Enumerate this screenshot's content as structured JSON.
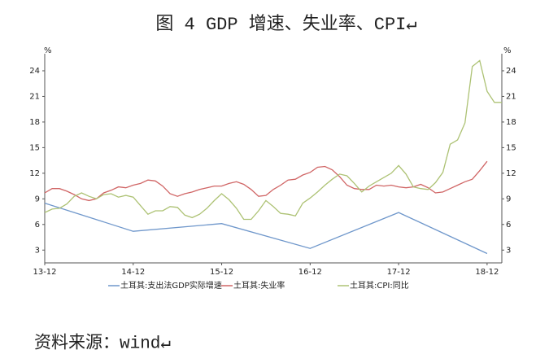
{
  "chart_data": {
    "type": "line",
    "title": "图 4 GDP 增速、失业率、CPI↵",
    "source": "资料来源：wind↵",
    "y_label": "%",
    "y2_label": "%",
    "x": [
      "13-12",
      "14-01",
      "14-02",
      "14-03",
      "14-04",
      "14-05",
      "14-06",
      "14-07",
      "14-08",
      "14-09",
      "14-10",
      "14-11",
      "14-12",
      "15-01",
      "15-02",
      "15-03",
      "15-04",
      "15-05",
      "15-06",
      "15-07",
      "15-08",
      "15-09",
      "15-10",
      "15-11",
      "15-12",
      "16-01",
      "16-02",
      "16-03",
      "16-04",
      "16-05",
      "16-06",
      "16-07",
      "16-08",
      "16-09",
      "16-10",
      "16-11",
      "16-12",
      "17-01",
      "17-02",
      "17-03",
      "17-04",
      "17-05",
      "17-06",
      "17-07",
      "17-08",
      "17-09",
      "17-10",
      "17-11",
      "17-12",
      "18-01",
      "18-02",
      "18-03",
      "18-04",
      "18-05",
      "18-06",
      "18-07",
      "18-08",
      "18-09",
      "18-10",
      "18-11",
      "18-12",
      "19-01",
      "19-02"
    ],
    "xticks": [
      "13-12",
      "14-12",
      "15-12",
      "16-12",
      "17-12",
      "18-12"
    ],
    "ylim": [
      1.5,
      26
    ],
    "yticks": [
      3,
      6,
      9,
      12,
      15,
      18,
      21,
      24
    ],
    "y2lim": [
      1.5,
      26
    ],
    "y2ticks": [
      3,
      6,
      9,
      12,
      15,
      18,
      21,
      24
    ],
    "series": [
      {
        "name": "土耳其:支出法GDP实际增速",
        "color": "#6f97cb",
        "x": [
          "13-12",
          "14-12",
          "15-12",
          "16-12",
          "17-12",
          "18-12"
        ],
        "values": [
          8.5,
          5.2,
          6.1,
          3.2,
          7.4,
          2.6
        ]
      },
      {
        "name": "土耳其:失业率",
        "color": "#d06565",
        "values": [
          9.7,
          10.2,
          10.2,
          9.9,
          9.5,
          9.0,
          8.8,
          9.0,
          9.7,
          10.0,
          10.4,
          10.3,
          10.6,
          10.8,
          11.2,
          11.1,
          10.5,
          9.6,
          9.3,
          9.6,
          9.8,
          10.1,
          10.3,
          10.5,
          10.5,
          10.8,
          11.0,
          10.7,
          10.1,
          9.3,
          9.4,
          10.1,
          10.6,
          11.2,
          11.3,
          11.8,
          12.1,
          12.7,
          12.8,
          12.4,
          11.6,
          10.6,
          10.2,
          10.1,
          10.1,
          10.6,
          10.5,
          10.6,
          10.4,
          10.3,
          10.4,
          10.7,
          10.3,
          9.7,
          9.8,
          10.2,
          10.6,
          11.0,
          11.3,
          12.3,
          13.4,
          null,
          null
        ]
      },
      {
        "name": "土耳其:CPI:同比",
        "color": "#adc274",
        "values": [
          7.4,
          7.8,
          7.9,
          8.4,
          9.3,
          9.7,
          9.3,
          9.0,
          9.5,
          9.6,
          9.2,
          9.4,
          9.2,
          8.2,
          7.2,
          7.6,
          7.6,
          8.1,
          8.0,
          7.1,
          6.8,
          7.2,
          7.9,
          8.8,
          9.6,
          8.9,
          7.9,
          6.6,
          6.6,
          7.6,
          8.8,
          8.1,
          7.3,
          7.2,
          7.0,
          8.5,
          9.1,
          9.8,
          10.6,
          11.3,
          11.9,
          11.7,
          10.8,
          9.8,
          10.5,
          11.0,
          11.5,
          12.0,
          12.9,
          11.9,
          10.4,
          10.2,
          10.1,
          10.9,
          12.1,
          15.4,
          15.9,
          17.9,
          24.5,
          25.2,
          21.6,
          20.3,
          20.3
        ]
      }
    ]
  }
}
